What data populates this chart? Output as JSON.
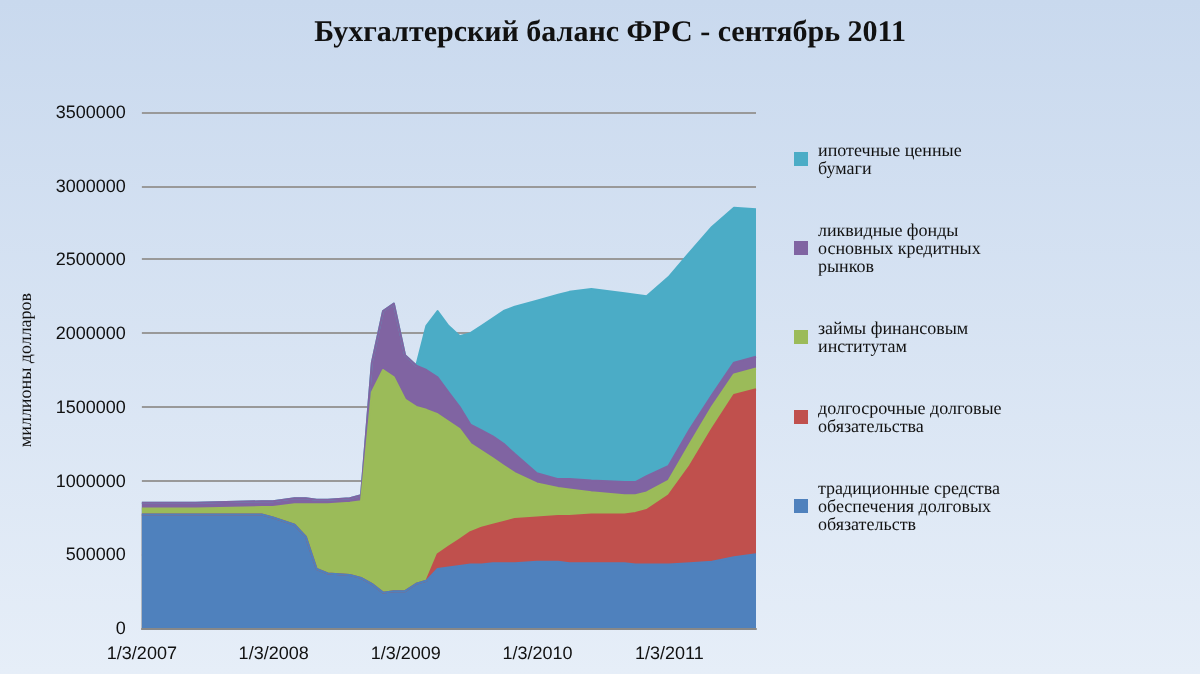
{
  "chart_data": {
    "type": "area",
    "stacked": true,
    "title": "Бухгалтерский баланс ФРС - сентябрь 2011",
    "ylabel": "миллионы долларов",
    "x": [
      "2007-01-03",
      "2007-06-01",
      "2007-12-01",
      "2008-01-01",
      "2008-03-01",
      "2008-04-01",
      "2008-05-01",
      "2008-06-01",
      "2008-08-01",
      "2008-09-01",
      "2008-10-01",
      "2008-11-01",
      "2008-12-01",
      "2009-01-01",
      "2009-02-01",
      "2009-03-01",
      "2009-04-01",
      "2009-05-01",
      "2009-06-01",
      "2009-07-01",
      "2009-08-01",
      "2009-09-01",
      "2009-10-01",
      "2009-11-01",
      "2010-01-01",
      "2010-03-01",
      "2010-04-01",
      "2010-06-01",
      "2010-09-01",
      "2010-10-01",
      "2010-11-01",
      "2011-01-01",
      "2011-03-01",
      "2011-05-01",
      "2011-07-01",
      "2011-08-31"
    ],
    "series": [
      {
        "name": "традиционные средства обеспечения долговых обязательств",
        "color": "#4f81bd",
        "values": [
          770000,
          770000,
          770000,
          750000,
          700000,
          620000,
          400000,
          370000,
          360000,
          340000,
          300000,
          240000,
          250000,
          250000,
          300000,
          320000,
          400000,
          410000,
          420000,
          430000,
          430000,
          440000,
          440000,
          440000,
          450000,
          450000,
          440000,
          440000,
          440000,
          430000,
          430000,
          430000,
          440000,
          450000,
          480000,
          500000
        ]
      },
      {
        "name": "долгосрочные долговые обязательства",
        "color": "#c0504d",
        "values": [
          0,
          0,
          0,
          0,
          0,
          0,
          0,
          0,
          0,
          0,
          0,
          0,
          0,
          0,
          0,
          0,
          100000,
          140000,
          180000,
          220000,
          250000,
          260000,
          280000,
          300000,
          300000,
          310000,
          320000,
          330000,
          330000,
          350000,
          370000,
          470000,
          660000,
          900000,
          1100000,
          1120000
        ]
      },
      {
        "name": "займы финансовым институтам",
        "color": "#9bbb59",
        "values": [
          40000,
          40000,
          50000,
          70000,
          140000,
          220000,
          440000,
          470000,
          490000,
          520000,
          1300000,
          1510000,
          1450000,
          1300000,
          1200000,
          1160000,
          950000,
          850000,
          750000,
          600000,
          520000,
          450000,
          380000,
          310000,
          230000,
          190000,
          180000,
          150000,
          130000,
          120000,
          120000,
          100000,
          150000,
          150000,
          140000,
          140000
        ]
      },
      {
        "name": "ликвидные фонды основных кредитных рынков",
        "color": "#8064a2",
        "values": [
          40000,
          40000,
          40000,
          40000,
          40000,
          40000,
          30000,
          30000,
          30000,
          40000,
          200000,
          400000,
          500000,
          300000,
          280000,
          270000,
          250000,
          200000,
          150000,
          130000,
          140000,
          150000,
          150000,
          130000,
          70000,
          60000,
          70000,
          80000,
          90000,
          90000,
          110000,
          100000,
          100000,
          80000,
          80000,
          80000
        ]
      },
      {
        "name": "ипотечные ценные бумаги",
        "color": "#4bacc6",
        "values": [
          0,
          0,
          0,
          0,
          0,
          0,
          0,
          0,
          0,
          0,
          0,
          0,
          0,
          0,
          0,
          300000,
          450000,
          450000,
          480000,
          620000,
          710000,
          800000,
          900000,
          1000000,
          1170000,
          1250000,
          1270000,
          1300000,
          1280000,
          1270000,
          1220000,
          1280000,
          1200000,
          1140000,
          1050000,
          1000000
        ]
      }
    ],
    "xlim": [
      "2007-01-03",
      "2011-08-31"
    ],
    "xticks": [
      {
        "value": "2007-01-03",
        "label": "1/3/2007"
      },
      {
        "value": "2008-01-03",
        "label": "1/3/2008"
      },
      {
        "value": "2009-01-03",
        "label": "1/3/2009"
      },
      {
        "value": "2010-01-03",
        "label": "1/3/2010"
      },
      {
        "value": "2011-01-03",
        "label": "1/3/2011"
      }
    ],
    "ylim": [
      0,
      3500000
    ],
    "yticks": [
      0,
      500000,
      1000000,
      1500000,
      2000000,
      2500000,
      3000000,
      3500000
    ],
    "grid": "y",
    "legend": "right"
  }
}
